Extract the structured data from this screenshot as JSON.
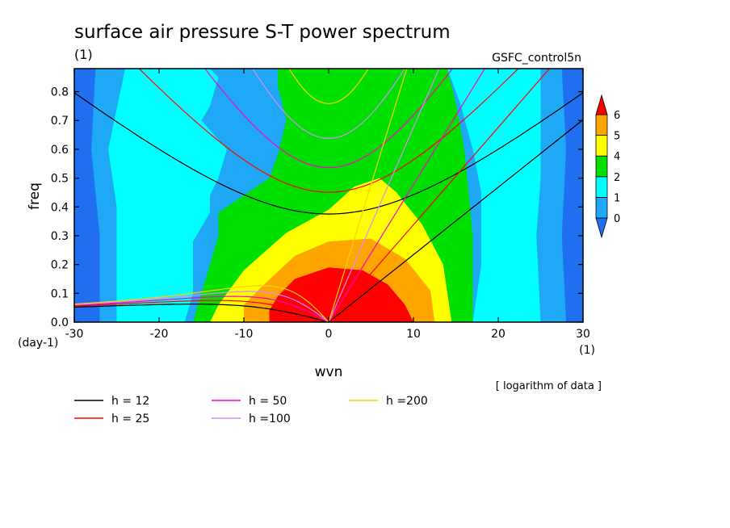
{
  "chart_data": {
    "type": "heatmap",
    "title": "surface air pressure S-T power spectrum",
    "subtitle": "(1)",
    "source_label": "GSFC_control5n",
    "xlabel": "wvn",
    "ylabel": "freq",
    "x_unit": "(1)",
    "y_unit": "(day-1)",
    "note": "[ logarithm of data ]",
    "xlim": [
      -30,
      30
    ],
    "ylim": [
      0,
      0.88
    ],
    "x_ticks": [
      -30,
      -20,
      -10,
      0,
      10,
      20,
      30
    ],
    "x_tick_labels": [
      "-30",
      "-20",
      "-10",
      "0",
      "10",
      "20",
      "30"
    ],
    "y_ticks": [
      0,
      0.1,
      0.2,
      0.3,
      0.4,
      0.5,
      0.6,
      0.7,
      0.8
    ],
    "y_tick_labels": [
      "0.0",
      "0.1",
      "0.2",
      "0.3",
      "0.4",
      "0.5",
      "0.6",
      "0.7",
      "0.8"
    ],
    "colorbar": {
      "labels": [
        "0",
        "1",
        "2",
        "4",
        "5",
        "6"
      ],
      "colors": [
        "#1f6ff0",
        "#1fa8f5",
        "#00ffff",
        "#00e000",
        "#ffff00",
        "#ffa500",
        "#ff0000"
      ]
    },
    "contour_levels": {
      "level_6": [
        [
          -7,
          0
        ],
        [
          -7,
          0.04
        ],
        [
          -6,
          0.09
        ],
        [
          -4,
          0.15
        ],
        [
          0,
          0.19
        ],
        [
          4,
          0.18
        ],
        [
          7,
          0.13
        ],
        [
          9,
          0.06
        ],
        [
          10,
          0
        ]
      ],
      "level_5": [
        [
          -10,
          0
        ],
        [
          -10,
          0.06
        ],
        [
          -8,
          0.12
        ],
        [
          -4,
          0.23
        ],
        [
          0,
          0.28
        ],
        [
          5,
          0.29
        ],
        [
          9,
          0.22
        ],
        [
          12,
          0.11
        ],
        [
          12.5,
          0
        ]
      ],
      "level_4": [
        [
          -14,
          0
        ],
        [
          -13,
          0.06
        ],
        [
          -10,
          0.18
        ],
        [
          -5,
          0.31
        ],
        [
          0,
          0.39
        ],
        [
          3,
          0.47
        ],
        [
          6,
          0.5
        ],
        [
          8,
          0.45
        ],
        [
          11,
          0.34
        ],
        [
          13.5,
          0.2
        ],
        [
          14.5,
          0
        ]
      ],
      "level_2": [
        [
          -16,
          0
        ],
        [
          -15,
          0.1
        ],
        [
          -14,
          0.2
        ],
        [
          -13,
          0.3
        ],
        [
          -13,
          0.38
        ],
        [
          -11,
          0.42
        ],
        [
          -7,
          0.5
        ],
        [
          -6,
          0.58
        ],
        [
          -5,
          0.7
        ],
        [
          -6,
          0.82
        ],
        [
          -6,
          0.88
        ],
        [
          14,
          0.88
        ],
        [
          15,
          0.76
        ],
        [
          16,
          0.6
        ],
        [
          16.5,
          0.45
        ],
        [
          17,
          0.3
        ],
        [
          17,
          0.1
        ],
        [
          17,
          0
        ]
      ],
      "level_1": [
        [
          -25,
          0
        ],
        [
          -25,
          0.4
        ],
        [
          -26,
          0.6
        ],
        [
          -24,
          0.88
        ],
        [
          -14,
          0.88
        ],
        [
          -13,
          0.85
        ],
        [
          -14,
          0.75
        ],
        [
          -15,
          0.7
        ],
        [
          -12,
          0.6
        ],
        [
          -13,
          0.5
        ],
        [
          -14,
          0.44
        ],
        [
          -14,
          0.38
        ],
        [
          -16,
          0.28
        ],
        [
          -16,
          0.1
        ],
        [
          -17,
          0
        ],
        [
          17,
          0
        ],
        [
          18,
          0.2
        ],
        [
          18,
          0.45
        ],
        [
          17,
          0.6
        ],
        [
          15.5,
          0.76
        ],
        [
          14,
          0.88
        ],
        [
          25,
          0.88
        ],
        [
          25,
          0.5
        ],
        [
          24.5,
          0.3
        ],
        [
          25,
          0
        ]
      ],
      "level_0": [
        [
          -27,
          0
        ],
        [
          -27,
          0.3
        ],
        [
          -28,
          0.6
        ],
        [
          -27.5,
          0.88
        ],
        [
          27.5,
          0.88
        ],
        [
          28,
          0.6
        ],
        [
          27.5,
          0.3
        ],
        [
          28,
          0
        ]
      ]
    },
    "dispersion_curves": [
      {
        "name": "h = 12",
        "h": 12,
        "color": "#000000"
      },
      {
        "name": "h = 25",
        "h": 25,
        "color": "#ff0000"
      },
      {
        "name": "h = 50",
        "h": 50,
        "color": "#ff00cc"
      },
      {
        "name": "h =100",
        "h": 100,
        "color": "#d98cff"
      },
      {
        "name": "h =200",
        "h": 200,
        "color": "#ffd000"
      }
    ]
  }
}
